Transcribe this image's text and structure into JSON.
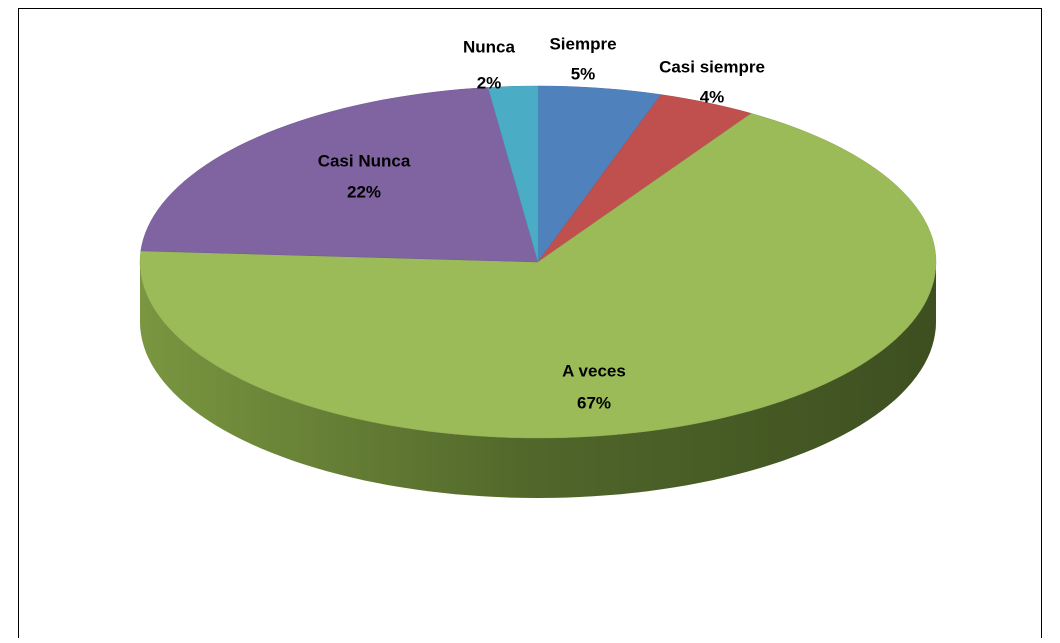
{
  "chart_data": {
    "type": "pie",
    "categories": [
      "Siempre",
      "Casi siempre",
      "A veces",
      "Casi Nunca",
      "Nunca"
    ],
    "values": [
      5,
      4,
      67,
      22,
      2
    ],
    "value_labels": [
      "5%",
      "4%",
      "67%",
      "22%",
      "2%"
    ],
    "colors": [
      "#4f81bd",
      "#c0504d",
      "#9bbb59",
      "#8064a2",
      "#4bacc6"
    ],
    "three_d": true
  }
}
